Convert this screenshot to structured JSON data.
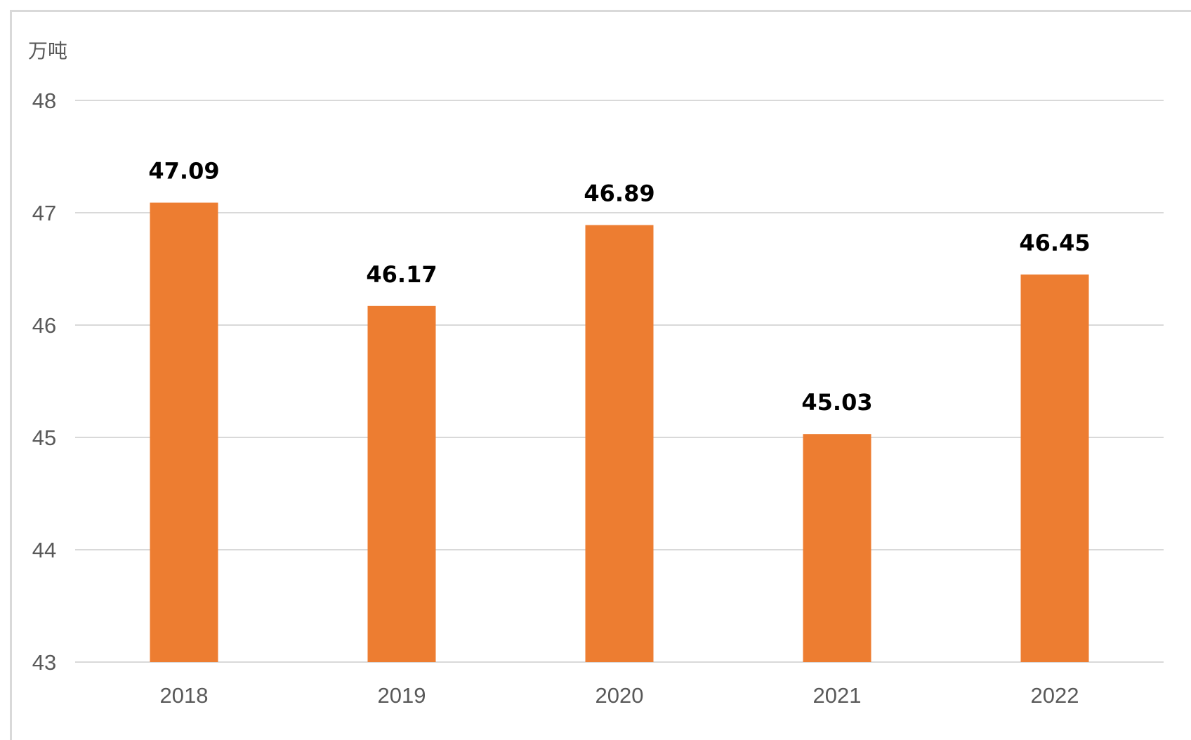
{
  "chart_data": {
    "type": "bar",
    "unit_label": "万吨",
    "categories": [
      "2018",
      "2019",
      "2020",
      "2021",
      "2022"
    ],
    "values": [
      47.09,
      46.17,
      46.89,
      45.03,
      46.45
    ],
    "data_labels": [
      "47.09",
      "46.17",
      "46.89",
      "45.03",
      "46.45"
    ],
    "ylim": [
      43,
      48
    ],
    "yticks": [
      "43",
      "44",
      "45",
      "46",
      "47",
      "48"
    ],
    "grid": true,
    "bar_color": "#ED7D31",
    "grid_color": "#D9D9D9",
    "tick_color": "#595959",
    "label_color": "#000000"
  }
}
